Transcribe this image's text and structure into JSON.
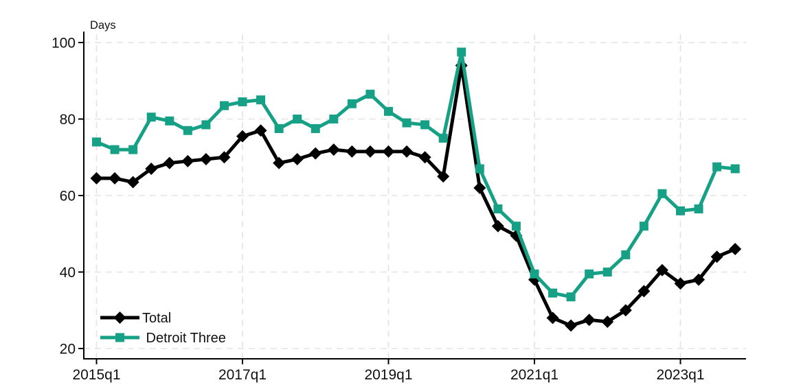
{
  "chart": {
    "ylabel": "Days",
    "legend_items": [
      {
        "label": "Total"
      },
      {
        "label": " Detroit Three"
      }
    ]
  },
  "chart_data": {
    "type": "line",
    "title": "",
    "xlabel": "",
    "ylabel": "Days",
    "units": "Days",
    "grid": true,
    "legend_position": "bottom-left",
    "ylim": [
      20,
      100
    ],
    "y_ticks": [
      20,
      40,
      60,
      80,
      100
    ],
    "x_tick_labels": [
      "2015q1",
      "2017q1",
      "2019q1",
      "2021q1",
      "2023q1"
    ],
    "categories": [
      "2015q1",
      "2015q2",
      "2015q3",
      "2015q4",
      "2016q1",
      "2016q2",
      "2016q3",
      "2016q4",
      "2017q1",
      "2017q2",
      "2017q3",
      "2017q4",
      "2018q1",
      "2018q2",
      "2018q3",
      "2018q4",
      "2019q1",
      "2019q2",
      "2019q3",
      "2019q4",
      "2020q1",
      "2020q2",
      "2020q3",
      "2020q4",
      "2021q1",
      "2021q2",
      "2021q3",
      "2021q4",
      "2022q1",
      "2022q2",
      "2022q3",
      "2022q4",
      "2023q1",
      "2023q2",
      "2023q3",
      "2023q4"
    ],
    "series": [
      {
        "name": "Total",
        "color": "#000000",
        "marker": "diamond",
        "values": [
          64.5,
          64.5,
          63.5,
          67,
          68.5,
          69,
          69.5,
          70,
          75.5,
          77,
          68.5,
          69.5,
          71,
          72,
          71.5,
          71.5,
          71.5,
          71.5,
          70,
          65,
          94,
          62,
          52,
          49.5,
          38,
          28,
          26,
          27.5,
          27,
          30,
          35,
          40.5,
          37,
          38,
          44,
          46
        ]
      },
      {
        "name": " Detroit Three",
        "color": "#16a085",
        "marker": "square",
        "values": [
          74,
          72,
          72,
          80.5,
          79.5,
          77,
          78.5,
          83.5,
          84.5,
          85,
          77.5,
          80,
          77.5,
          80,
          84,
          86.5,
          82,
          79,
          78.5,
          75,
          97.5,
          67,
          56.5,
          52,
          39.5,
          34.5,
          33.5,
          39.5,
          40,
          44.5,
          52,
          60.5,
          56,
          56.5,
          67.5,
          67
        ]
      }
    ],
    "colors": {
      "axis": "#000000",
      "gridline": "#e3e3e3",
      "background": "#ffffff",
      "total_series": "#000000",
      "detroit_three_series": "#16a085"
    }
  }
}
